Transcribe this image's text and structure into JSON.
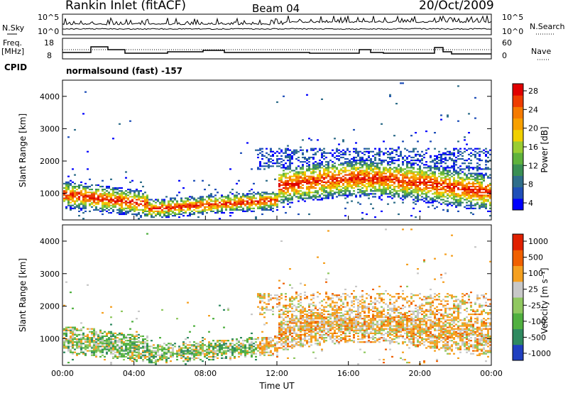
{
  "header": {
    "title": "Rankin Inlet (fitACF)",
    "beam": "Beam 04",
    "date": "20/Oct/2009"
  },
  "strip1": {
    "left_label": "N.Sky",
    "right_label": "N.Search",
    "left_ticks": [
      "10^5",
      "10^0"
    ],
    "right_ticks": [
      "10^5",
      "10^0"
    ]
  },
  "strip2": {
    "left_label_1": "Freq.",
    "left_label_2": "[MHz]",
    "right_label": "Nave",
    "left_ticks": [
      "18",
      "8"
    ],
    "right_ticks": [
      "60",
      "0"
    ]
  },
  "cpid": {
    "label": "CPID",
    "text": "normalsound (fast) -157"
  },
  "chart_data": [
    {
      "type": "heatmap",
      "name": "Power",
      "ylabel": "Slant Range [km]",
      "yticks": [
        "1000",
        "2000",
        "3000",
        "4000"
      ],
      "ylim": [
        180,
        4500
      ],
      "colorbar": {
        "label": "Power [dB]",
        "ticks": [
          "28",
          "24",
          "20",
          "16",
          "12",
          "8",
          "4"
        ],
        "colors": [
          "#0000ff",
          "#1f4fb8",
          "#2f6e8a",
          "#3a8f54",
          "#5fb23c",
          "#9acd32",
          "#f0d000",
          "#f7a000",
          "#f57a00",
          "#ee3c00",
          "#e00000"
        ]
      }
    },
    {
      "type": "heatmap",
      "name": "Velocity",
      "ylabel": "Slant Range [km]",
      "yticks": [
        "1000",
        "2000",
        "3000",
        "4000"
      ],
      "ylim": [
        180,
        4500
      ],
      "xlabel": "Time UT",
      "xticks": [
        "00:00",
        "04:00",
        "08:00",
        "12:00",
        "16:00",
        "20:00",
        "00:00"
      ],
      "colorbar": {
        "label": "Velocity [m s⁻¹]",
        "ticks": [
          "1000",
          "500",
          "100",
          "25",
          "-25",
          "-100",
          "-500",
          "-1000"
        ],
        "colors": [
          "#2040c0",
          "#2f8a60",
          "#50b040",
          "#90c860",
          "#c8c8c8",
          "#f5a020",
          "#f06000",
          "#e02000"
        ]
      }
    }
  ]
}
